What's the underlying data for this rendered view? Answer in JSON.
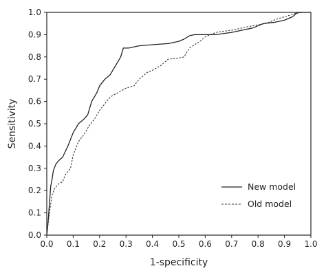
{
  "chart_data": {
    "type": "line",
    "xlabel": "1-specificity",
    "ylabel": "Sensitivity",
    "xlim": [
      0,
      1
    ],
    "ylim": [
      0,
      1
    ],
    "xticks": [
      "0.0",
      "0.1",
      "0.2",
      "0.3",
      "0.4",
      "0.5",
      "0.6",
      "0.7",
      "0.8",
      "0.9",
      "1.0"
    ],
    "yticks": [
      "0.0",
      "0.1",
      "0.2",
      "0.3",
      "0.4",
      "0.5",
      "0.6",
      "0.7",
      "0.8",
      "0.9",
      "1.0"
    ],
    "grid": false,
    "legend_position": "bottom-right",
    "series": [
      {
        "name": "New model",
        "style": "solid",
        "color": "#222222",
        "points": [
          [
            0.0,
            0.0
          ],
          [
            0.005,
            0.06
          ],
          [
            0.01,
            0.14
          ],
          [
            0.015,
            0.22
          ],
          [
            0.02,
            0.25
          ],
          [
            0.025,
            0.29
          ],
          [
            0.035,
            0.32
          ],
          [
            0.05,
            0.34
          ],
          [
            0.06,
            0.35
          ],
          [
            0.08,
            0.4
          ],
          [
            0.09,
            0.43
          ],
          [
            0.1,
            0.46
          ],
          [
            0.12,
            0.5
          ],
          [
            0.14,
            0.52
          ],
          [
            0.155,
            0.54
          ],
          [
            0.17,
            0.6
          ],
          [
            0.19,
            0.64
          ],
          [
            0.2,
            0.67
          ],
          [
            0.22,
            0.7
          ],
          [
            0.24,
            0.72
          ],
          [
            0.255,
            0.75
          ],
          [
            0.27,
            0.78
          ],
          [
            0.28,
            0.8
          ],
          [
            0.29,
            0.84
          ],
          [
            0.31,
            0.84
          ],
          [
            0.33,
            0.845
          ],
          [
            0.35,
            0.85
          ],
          [
            0.4,
            0.855
          ],
          [
            0.46,
            0.86
          ],
          [
            0.5,
            0.87
          ],
          [
            0.52,
            0.88
          ],
          [
            0.54,
            0.895
          ],
          [
            0.56,
            0.9
          ],
          [
            0.64,
            0.9
          ],
          [
            0.7,
            0.91
          ],
          [
            0.74,
            0.92
          ],
          [
            0.78,
            0.93
          ],
          [
            0.82,
            0.95
          ],
          [
            0.86,
            0.955
          ],
          [
            0.9,
            0.965
          ],
          [
            0.93,
            0.98
          ],
          [
            0.95,
            1.0
          ],
          [
            1.0,
            1.0
          ]
        ]
      },
      {
        "name": "Old model",
        "style": "dashed",
        "color": "#333333",
        "points": [
          [
            0.0,
            0.0
          ],
          [
            0.01,
            0.1
          ],
          [
            0.02,
            0.18
          ],
          [
            0.03,
            0.21
          ],
          [
            0.045,
            0.23
          ],
          [
            0.06,
            0.24
          ],
          [
            0.07,
            0.27
          ],
          [
            0.09,
            0.3
          ],
          [
            0.1,
            0.36
          ],
          [
            0.12,
            0.42
          ],
          [
            0.14,
            0.45
          ],
          [
            0.16,
            0.49
          ],
          [
            0.18,
            0.52
          ],
          [
            0.2,
            0.56
          ],
          [
            0.22,
            0.59
          ],
          [
            0.24,
            0.62
          ],
          [
            0.27,
            0.64
          ],
          [
            0.3,
            0.66
          ],
          [
            0.33,
            0.67
          ],
          [
            0.35,
            0.7
          ],
          [
            0.38,
            0.73
          ],
          [
            0.4,
            0.74
          ],
          [
            0.43,
            0.76
          ],
          [
            0.46,
            0.79
          ],
          [
            0.5,
            0.795
          ],
          [
            0.52,
            0.8
          ],
          [
            0.54,
            0.84
          ],
          [
            0.58,
            0.87
          ],
          [
            0.6,
            0.89
          ],
          [
            0.64,
            0.91
          ],
          [
            0.7,
            0.92
          ],
          [
            0.74,
            0.93
          ],
          [
            0.78,
            0.94
          ],
          [
            0.83,
            0.95
          ],
          [
            0.87,
            0.97
          ],
          [
            0.9,
            0.98
          ],
          [
            0.94,
            0.995
          ],
          [
            0.97,
            1.0
          ],
          [
            1.0,
            1.0
          ]
        ]
      }
    ]
  }
}
